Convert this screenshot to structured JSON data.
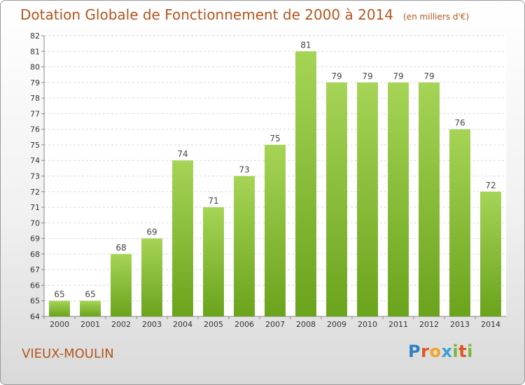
{
  "page": {
    "title": "Dotation Globale de Fonctionnement de 2000 à 2014",
    "unit": "(en milliers d'€)",
    "commune": "VIEUX-MOULIN",
    "logo_letters": [
      {
        "ch": "P",
        "color": "#2f7fc6"
      },
      {
        "ch": "r",
        "color": "#e2541f"
      },
      {
        "ch": "o",
        "color": "#f3a325"
      },
      {
        "ch": "x",
        "color": "#3aa0dc"
      },
      {
        "ch": "i",
        "color": "#7ab83a"
      },
      {
        "ch": "t",
        "color": "#e2541f"
      },
      {
        "ch": "i",
        "color": "#7ab83a"
      }
    ],
    "colors": {
      "title": "#b3561f",
      "bar_top": "#a6d456",
      "bar_bottom": "#6aa31c",
      "axis_text": "#333333"
    }
  },
  "chart_data": {
    "type": "bar",
    "title": "Dotation Globale de Fonctionnement de 2000 à 2014",
    "subtitle": "(en milliers d'€)",
    "categories": [
      "2000",
      "2001",
      "2002",
      "2003",
      "2004",
      "2005",
      "2006",
      "2007",
      "2008",
      "2009",
      "2010",
      "2011",
      "2012",
      "2013",
      "2014"
    ],
    "values": [
      65,
      65,
      68,
      69,
      74,
      71,
      73,
      75,
      81,
      79,
      79,
      79,
      79,
      76,
      72
    ],
    "ylim": [
      64,
      82
    ],
    "yticks": [
      64,
      65,
      66,
      67,
      68,
      69,
      70,
      71,
      72,
      73,
      74,
      75,
      76,
      77,
      78,
      79,
      80,
      81,
      82
    ],
    "xlabel": "",
    "ylabel": "",
    "grid": true,
    "data_labels": true
  }
}
